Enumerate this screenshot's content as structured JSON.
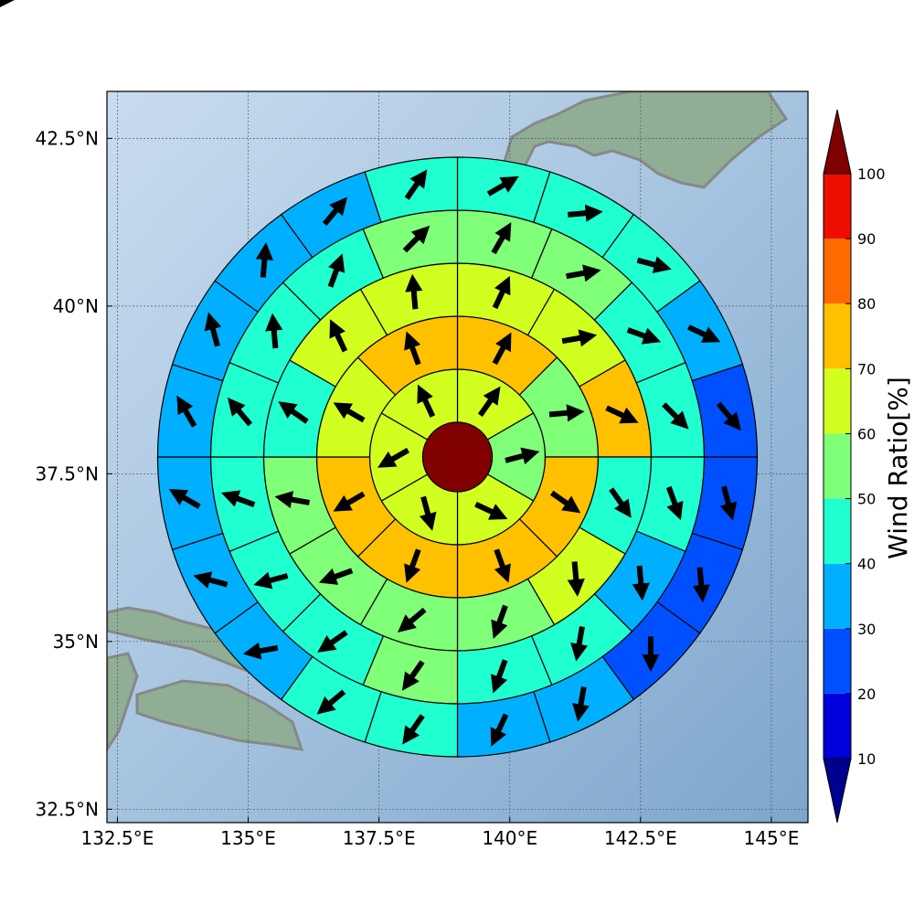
{
  "chart_data": {
    "type": "polar-wind-map",
    "title": "",
    "map_extent": {
      "lon": [
        132.3,
        145.7
      ],
      "lat": [
        32.3,
        43.2
      ]
    },
    "x_ticks": [
      "132.5°E",
      "135°E",
      "137.5°E",
      "140°E",
      "142.5°E",
      "145°E"
    ],
    "x_tick_values": [
      132.5,
      135,
      137.5,
      140,
      142.5,
      145
    ],
    "y_ticks": [
      "42.5°N",
      "40°N",
      "37.5°N",
      "35°N",
      "32.5°N"
    ],
    "y_tick_values": [
      42.5,
      40,
      37.5,
      35,
      32.5
    ],
    "grid": true,
    "center": {
      "lon": 139.0,
      "lat": 37.75
    },
    "center_ratio": 100,
    "colorbar": {
      "title": "Wind Ratio[%]",
      "ticks": [
        "10",
        "20",
        "30",
        "40",
        "50",
        "60",
        "70",
        "80",
        "90",
        "100"
      ],
      "extend": "both",
      "colors": [
        "#00008f",
        "#0000dd",
        "#0050ff",
        "#00b0ff",
        "#20ffd0",
        "#80ff78",
        "#d0ff20",
        "#ffc000",
        "#ff6a00",
        "#ee0f00",
        "#800000"
      ]
    },
    "rings": [
      {
        "ratios": [
          60,
          55,
          60,
          65,
          60,
          65
        ],
        "wind_dir_deg": [
          35,
          75,
          115,
          165,
          240,
          335
        ]
      },
      {
        "ratios": [
          70,
          50,
          70,
          70,
          70,
          70,
          60,
          70
        ],
        "wind_dir_deg": [
          28,
          85,
          125,
          160,
          200,
          240,
          300,
          340
        ]
      },
      {
        "ratios": [
          60,
          60,
          70,
          40,
          60,
          50,
          50,
          50,
          50,
          40,
          60,
          60
        ],
        "wind_dir_deg": [
          25,
          80,
          115,
          145,
          175,
          200,
          230,
          250,
          280,
          305,
          335,
          355
        ]
      },
      {
        "ratios": [
          50,
          50,
          40,
          40,
          40,
          30,
          40,
          40,
          50,
          40,
          40,
          40,
          40,
          40,
          40,
          50
        ],
        "wind_dir_deg": [
          30,
          80,
          110,
          135,
          160,
          175,
          190,
          200,
          215,
          235,
          255,
          290,
          320,
          355,
          20,
          45
        ]
      },
      {
        "ratios": [
          40,
          40,
          40,
          30,
          20,
          20,
          20,
          20,
          30,
          30,
          40,
          40,
          30,
          30,
          30,
          30,
          30,
          30,
          30,
          40
        ],
        "wind_dir_deg": [
          60,
          85,
          105,
          115,
          140,
          165,
          175,
          180,
          190,
          205,
          215,
          230,
          260,
          285,
          300,
          330,
          345,
          5,
          40,
          35
        ]
      },
      {
        "ratios": [
          40,
          40,
          40,
          30,
          20,
          20,
          20,
          20,
          10,
          10,
          20,
          30,
          30,
          30,
          30,
          30,
          30,
          20,
          20,
          20,
          30,
          40,
          30,
          20
        ],
        "wind_dir_deg": [
          70,
          85,
          100,
          110,
          125,
          155,
          170,
          175,
          185,
          205,
          205,
          215,
          225,
          230,
          250,
          260,
          285,
          300,
          335,
          345,
          10,
          30,
          60,
          75
        ]
      }
    ]
  }
}
